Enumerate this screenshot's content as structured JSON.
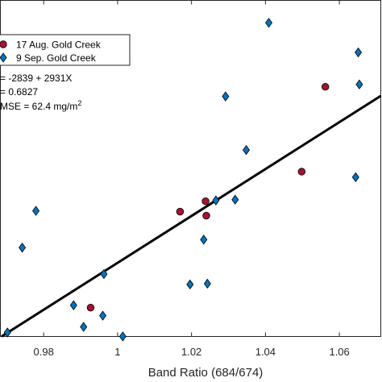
{
  "chart_data": {
    "type": "scatter",
    "xlabel": "Band Ratio (684/674)",
    "ylabel": "",
    "xlim": [
      0.9683,
      1.0712
    ],
    "ylim": [
      0,
      420
    ],
    "xticks": [
      0.98,
      1,
      1.02,
      1.04,
      1.06
    ],
    "xtick_labels": [
      "0.98",
      "1",
      "1.02",
      "1.04",
      "1.06"
    ],
    "grid": false,
    "legend_position": "top-left",
    "colors": {
      "series_aug": "#a2142f",
      "series_sep": "#0072bd",
      "fit_line": "#000000",
      "axes": "#262626"
    },
    "series": [
      {
        "name": "17 Aug. Gold Creek",
        "marker": "circle",
        "points": [
          {
            "x": 0.9927,
            "y": 36
          },
          {
            "x": 1.0169,
            "y": 156
          },
          {
            "x": 1.0238,
            "y": 169
          },
          {
            "x": 1.024,
            "y": 151
          },
          {
            "x": 1.0498,
            "y": 206
          },
          {
            "x": 1.0562,
            "y": 312
          }
        ]
      },
      {
        "name": "9 Sep. Gold Creek",
        "marker": "diamond",
        "points": [
          {
            "x": 0.9702,
            "y": 5
          },
          {
            "x": 0.9742,
            "y": 111
          },
          {
            "x": 0.9779,
            "y": 157
          },
          {
            "x": 0.9881,
            "y": 39
          },
          {
            "x": 0.9908,
            "y": 12
          },
          {
            "x": 0.996,
            "y": 26
          },
          {
            "x": 0.9963,
            "y": 78
          },
          {
            "x": 1.0014,
            "y": 0
          },
          {
            "x": 1.0196,
            "y": 65
          },
          {
            "x": 1.0233,
            "y": 121
          },
          {
            "x": 1.0243,
            "y": 66
          },
          {
            "x": 1.0266,
            "y": 170
          },
          {
            "x": 1.0292,
            "y": 300
          },
          {
            "x": 1.0318,
            "y": 171
          },
          {
            "x": 1.0348,
            "y": 233
          },
          {
            "x": 1.0409,
            "y": 392
          },
          {
            "x": 1.0644,
            "y": 199
          },
          {
            "x": 1.0651,
            "y": 355
          },
          {
            "x": 1.0654,
            "y": 315
          }
        ]
      }
    ],
    "fit_line": {
      "intercept": -2839,
      "slope": 2931
    },
    "annotations": {
      "equation": "= -2839 + 2931X",
      "r_squared": "= 0.6827",
      "rmse_text": "MSE = 62.4 mg/m",
      "rmse_superscript": "2"
    }
  }
}
